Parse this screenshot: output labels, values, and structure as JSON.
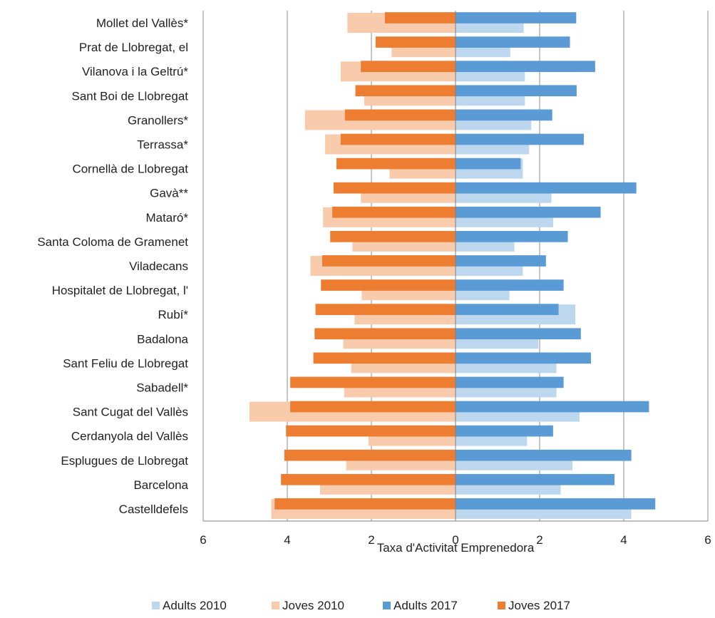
{
  "chart_data": {
    "type": "bar",
    "orientation": "horizontal",
    "layout": "diverging",
    "title": "",
    "xlabel": "Taxa d'Activitat Emprenedora",
    "ylabel": "",
    "xlim": [
      -6,
      6
    ],
    "xticks": [
      -6,
      -4,
      -2,
      0,
      2,
      4,
      6
    ],
    "xtick_labels": [
      "6",
      "4",
      "2",
      "0",
      "2",
      "4",
      "6"
    ],
    "grid": "vertical",
    "legend_position": "bottom",
    "categories": [
      "Mollet del Vallès*",
      "Prat de Llobregat, el",
      "Vilanova i la Geltrú*",
      "Sant Boi de Llobregat",
      "Granollers*",
      "Terrassa*",
      "Cornellà de Llobregat",
      "Gavà**",
      "Mataró*",
      "Santa Coloma de Gramenet",
      "Viladecans",
      "Hospitalet de Llobregat, l'",
      "Rubí*",
      "Badalona",
      "Sant Feliu de Llobregat",
      "Sabadell*",
      "Sant Cugat del Vallès",
      "Cerdanyola del Vallès",
      "Esplugues de Llobregat",
      "Barcelona",
      "Castelldefels"
    ],
    "series": [
      {
        "name": "Adults 2010",
        "side": "right",
        "style": "wide",
        "color": "#bdd7ee",
        "values": [
          1.62,
          1.3,
          1.65,
          1.65,
          1.8,
          1.75,
          1.6,
          2.28,
          2.32,
          1.4,
          1.6,
          1.28,
          2.85,
          1.97,
          2.4,
          2.4,
          2.95,
          1.7,
          2.78,
          2.5,
          4.18
        ]
      },
      {
        "name": "Joves 2010",
        "side": "left",
        "style": "wide",
        "color": "#f8cbad",
        "values": [
          2.57,
          1.52,
          2.73,
          2.17,
          3.58,
          3.1,
          1.57,
          2.25,
          3.15,
          2.45,
          3.45,
          2.23,
          2.4,
          2.67,
          2.48,
          2.65,
          4.9,
          2.07,
          2.6,
          3.22,
          4.38
        ]
      },
      {
        "name": "Adults 2017",
        "side": "right",
        "style": "narrow",
        "color": "#5b9bd5",
        "values": [
          2.87,
          2.72,
          3.32,
          2.88,
          2.3,
          3.05,
          1.55,
          4.3,
          3.45,
          2.67,
          2.15,
          2.57,
          2.45,
          2.98,
          3.22,
          2.57,
          4.6,
          2.32,
          4.18,
          3.78,
          4.75
        ]
      },
      {
        "name": "Joves 2017",
        "side": "left",
        "style": "narrow",
        "color": "#ed7d31",
        "values": [
          1.68,
          1.9,
          2.25,
          2.38,
          2.63,
          2.73,
          2.83,
          2.9,
          2.93,
          2.98,
          3.17,
          3.2,
          3.33,
          3.35,
          3.38,
          3.93,
          3.93,
          4.03,
          4.07,
          4.15,
          4.3
        ]
      }
    ]
  }
}
